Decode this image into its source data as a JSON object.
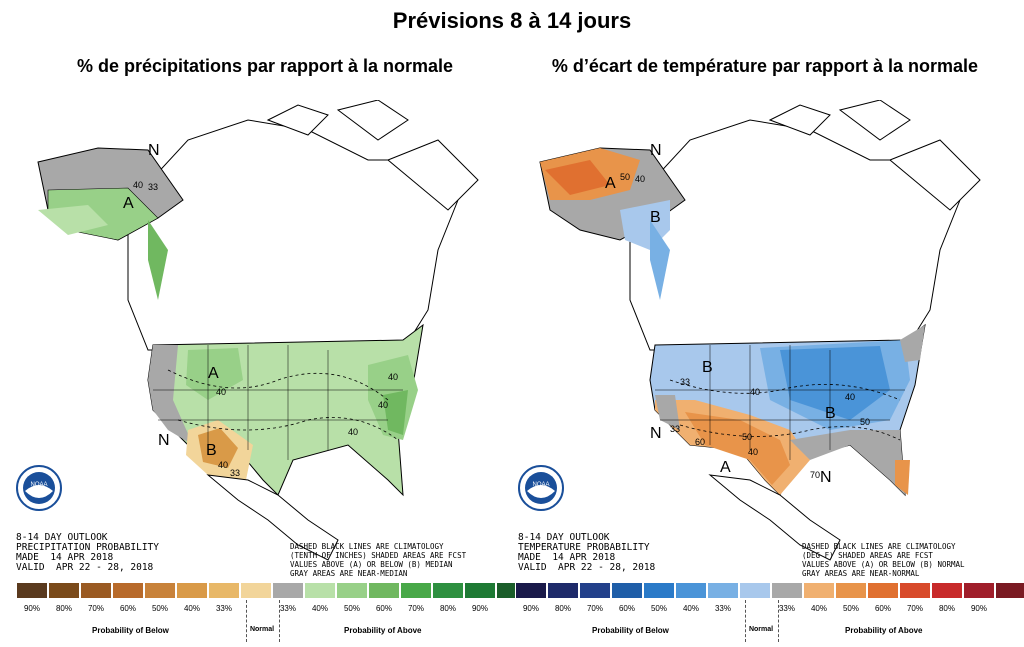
{
  "title": "Prévisions 8 à 14 jours",
  "left_panel": {
    "subtitle": "% de précipitations par rapport à la normale",
    "outlook_label": "8-14 DAY OUTLOOK\nPRECIPITATION PROBABILITY\nMADE  14 APR 2018\nVALID  APR 22 - 28, 2018",
    "note": "DASHED BLACK LINES ARE CLIMATOLOGY\n(TENTH OF INCHES) SHADED AREAS ARE FCST\nVALUES ABOVE (A) OR BELOW (B) MEDIAN\nGRAY AREAS ARE NEAR-MEDIAN",
    "labels": [
      "A",
      "A",
      "N",
      "B",
      "N",
      "40",
      "33",
      "40",
      "33",
      "40",
      "40",
      "40",
      "40"
    ],
    "legend_colors": [
      "#5a3a1e",
      "#7a4a1a",
      "#9a5a22",
      "#b86a2a",
      "#c8823a",
      "#d99a48",
      "#e8b868",
      "#f2d59a",
      "#a8a8a8",
      "#b8e0a8",
      "#98d088",
      "#70b860",
      "#48a848",
      "#2e9040",
      "#1e7a34",
      "#1b5e2a"
    ],
    "ticks": [
      "90%",
      "80%",
      "70%",
      "60%",
      "50%",
      "40%",
      "33%",
      "",
      "33%",
      "40%",
      "50%",
      "60%",
      "70%",
      "80%",
      "90%",
      ""
    ]
  },
  "right_panel": {
    "subtitle": "% d’écart de température par rapport à la normale",
    "outlook_label": "8-14 DAY OUTLOOK\nTEMPERATURE PROBABILITY\nMADE  14 APR 2018\nVALID  APR 22 - 28, 2018",
    "note": "DASHED BLACK LINES ARE CLIMATOLOGY\n(DEG F) SHADED AREAS ARE FCST\nVALUES ABOVE (A) OR BELOW (B) NORMAL\nGRAY AREAS ARE NEAR-NORMAL",
    "labels": [
      "A",
      "B",
      "N",
      "B",
      "B",
      "A",
      "N",
      "N",
      "50",
      "40",
      "33",
      "40",
      "50",
      "40",
      "50",
      "60",
      "40",
      "33",
      "70"
    ],
    "legend_colors": [
      "#1a1a4a",
      "#1e2a6a",
      "#22408a",
      "#1f5ea8",
      "#2a7ac8",
      "#4a94d8",
      "#78b0e4",
      "#a8c8ec",
      "#a8a8a8",
      "#f0b070",
      "#e8944a",
      "#e07030",
      "#d84a2a",
      "#c82a2a",
      "#a01e2a",
      "#7a1a22"
    ],
    "ticks": [
      "90%",
      "80%",
      "70%",
      "60%",
      "50%",
      "40%",
      "33%",
      "",
      "33%",
      "40%",
      "50%",
      "60%",
      "70%",
      "80%",
      "90%",
      ""
    ]
  },
  "legend_text": {
    "below": "Probability of Below",
    "normal": "Normal",
    "above": "Probability of Above"
  },
  "logo_text": "NOAA"
}
